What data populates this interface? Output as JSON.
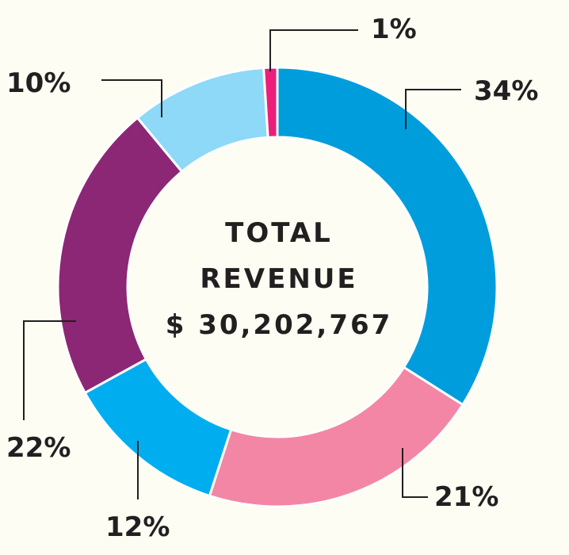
{
  "chart_data": {
    "type": "pie",
    "style": "donut",
    "center_text": [
      "TOTAL",
      "REVENUE",
      "$ 30,202,767"
    ],
    "slices": [
      {
        "label": "34%",
        "value": 34,
        "color": "#009ddd"
      },
      {
        "label": "21%",
        "value": 21,
        "color": "#f386a5"
      },
      {
        "label": "12%",
        "value": 12,
        "color": "#00aeef"
      },
      {
        "label": "22%",
        "value": 22,
        "color": "#8b2775"
      },
      {
        "label": "10%",
        "value": 10,
        "color": "#8ed8f8"
      },
      {
        "label": "1%",
        "value": 1,
        "color": "#ec1e79"
      }
    ]
  }
}
